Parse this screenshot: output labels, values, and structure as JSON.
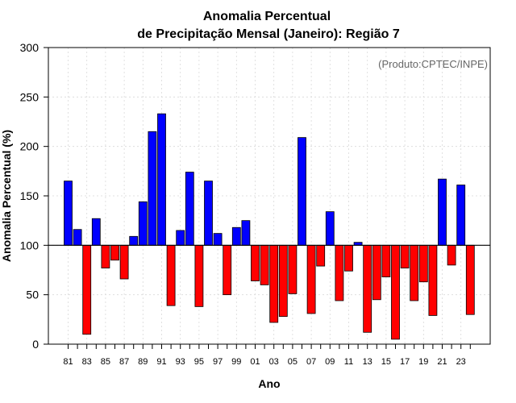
{
  "chart_data": {
    "type": "bar",
    "title_line1": "Anomalia Percentual",
    "title_line2": "de Precipitação Mensal (Janeiro): Região 7",
    "xlabel": "Ano",
    "ylabel": "Anomalia Percentual (%)",
    "annotation": "(Produto:CPTEC/INPE)",
    "ylim": [
      0,
      300
    ],
    "yticks": [
      0,
      50,
      100,
      150,
      200,
      250,
      300
    ],
    "reference_value": 100,
    "grid": true,
    "colors": {
      "above": "#0000ff",
      "below": "#ff0000"
    },
    "categories": [
      "81",
      "82",
      "83",
      "84",
      "85",
      "86",
      "87",
      "88",
      "89",
      "90",
      "91",
      "92",
      "93",
      "94",
      "95",
      "96",
      "97",
      "98",
      "99",
      "00",
      "01",
      "02",
      "03",
      "04",
      "05",
      "06",
      "07",
      "08",
      "09",
      "10",
      "11",
      "12",
      "13",
      "14",
      "15",
      "16",
      "17",
      "18",
      "19",
      "20",
      "21",
      "22",
      "23",
      "24"
    ],
    "values": [
      165,
      116,
      10,
      127,
      77,
      85,
      66,
      109,
      144,
      215,
      233,
      39,
      115,
      174,
      38,
      165,
      112,
      50,
      118,
      125,
      64,
      60,
      22,
      28,
      51,
      209,
      31,
      79,
      134,
      44,
      74,
      103,
      12,
      45,
      68,
      5,
      77,
      44,
      63,
      29,
      167,
      80,
      161,
      30
    ],
    "xtick_labels": [
      "81",
      "83",
      "85",
      "87",
      "89",
      "91",
      "93",
      "95",
      "97",
      "99",
      "01",
      "03",
      "05",
      "07",
      "09",
      "11",
      "13",
      "15",
      "17",
      "19",
      "21",
      "23"
    ]
  }
}
